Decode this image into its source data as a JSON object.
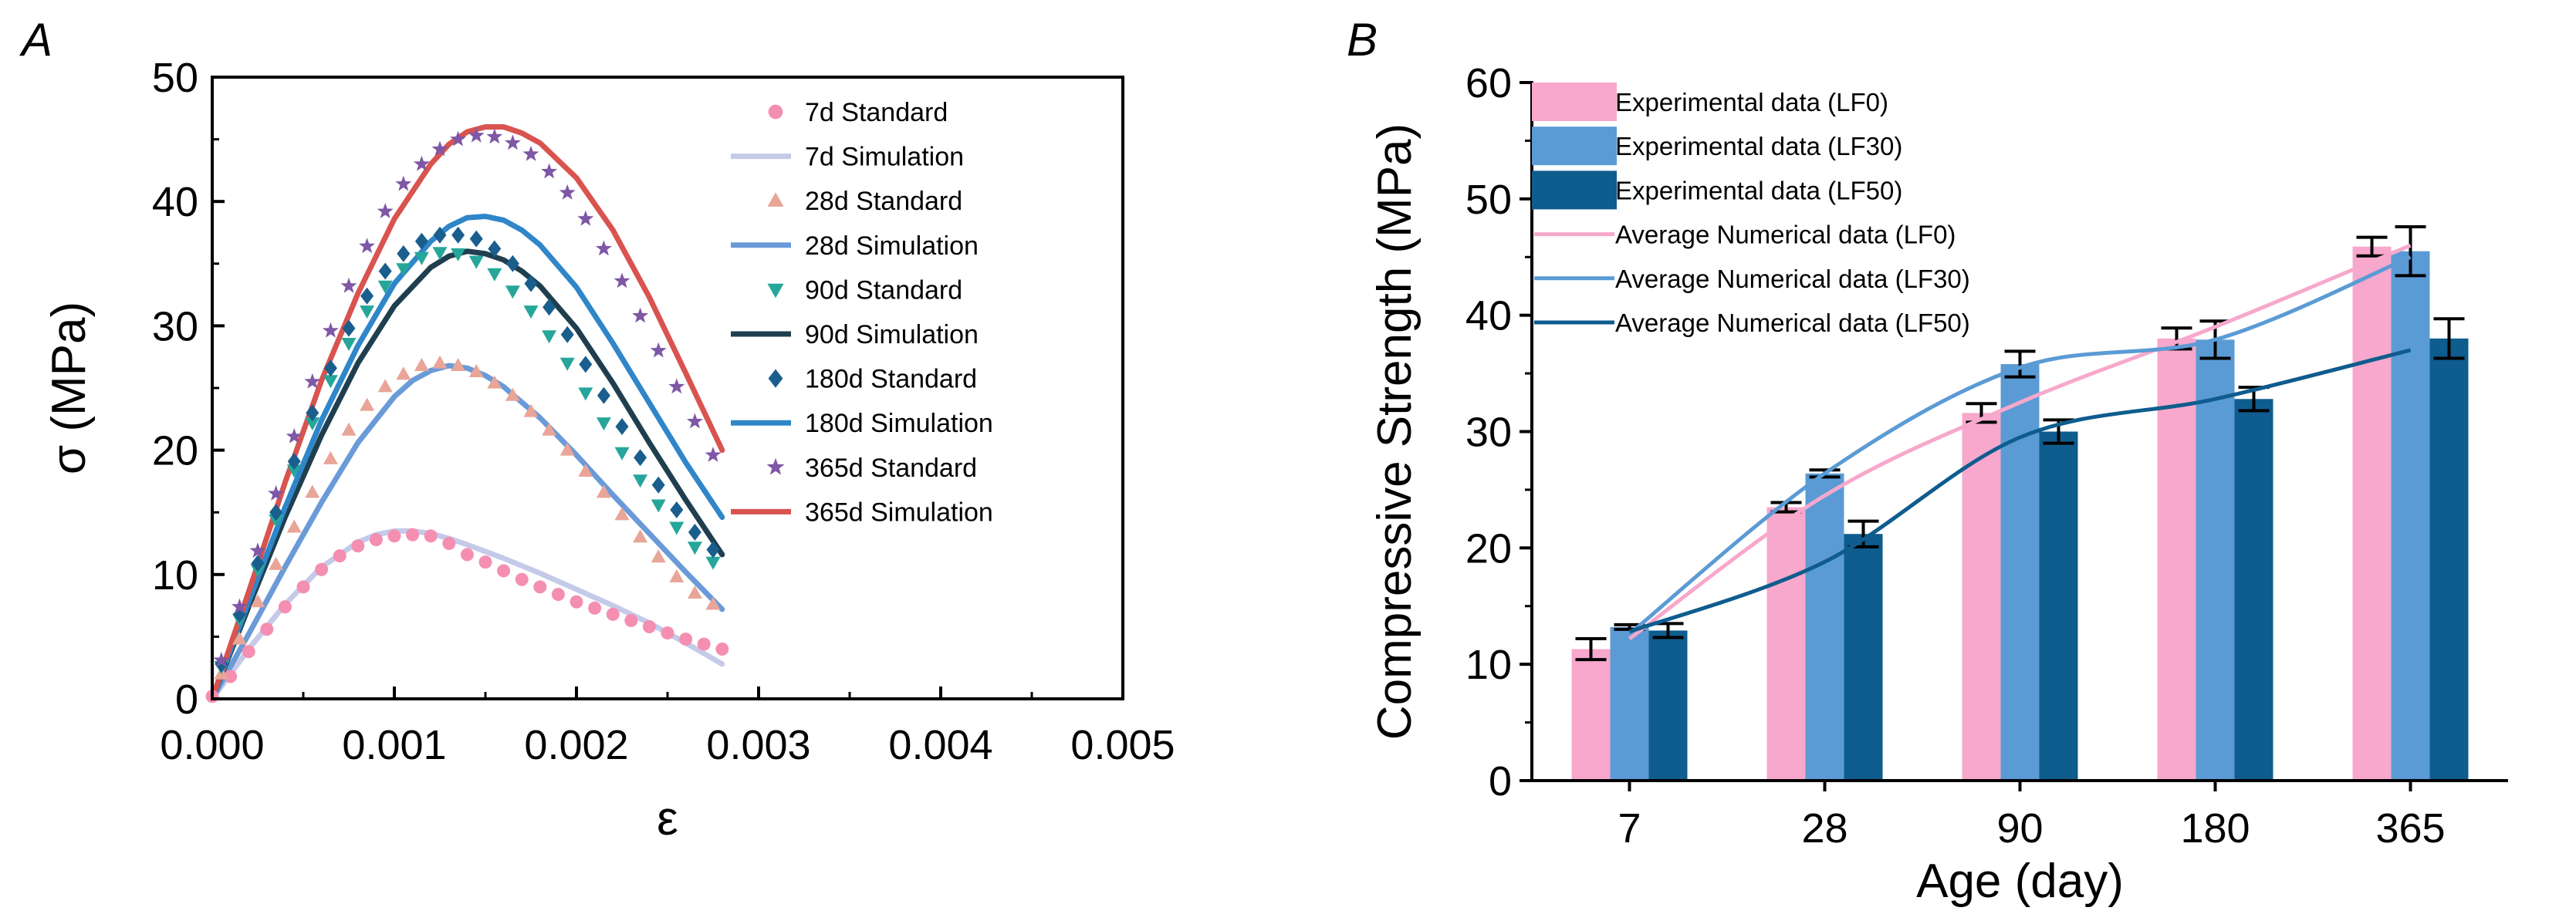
{
  "chart_data": [
    {
      "panel_label": "A",
      "type": "scatter",
      "xlabel": "ε",
      "ylabel": "σ (MPa)",
      "xlim": [
        0,
        0.005
      ],
      "ylim": [
        0,
        50
      ],
      "xticks": [
        "0.000",
        "0.001",
        "0.002",
        "0.003",
        "0.004",
        "0.005"
      ],
      "yticks": [
        "0",
        "10",
        "20",
        "30",
        "40",
        "50"
      ],
      "xtick_values": [
        0,
        0.001,
        0.002,
        0.003,
        0.004,
        0.005
      ],
      "ytick_values": [
        0,
        10,
        20,
        30,
        40,
        50
      ],
      "series": [
        {
          "name": "7d Standard",
          "kind": "marker",
          "marker": "circle",
          "color": "#F48FB1",
          "x": [
            0,
            0.0001,
            0.0002,
            0.0003,
            0.0004,
            0.0005,
            0.0006,
            0.0007,
            0.0008,
            0.0009,
            0.001,
            0.0011,
            0.0012,
            0.0013,
            0.0014,
            0.0015,
            0.0016,
            0.0017,
            0.0018,
            0.0019,
            0.002,
            0.0021,
            0.0022,
            0.0023,
            0.0024,
            0.0025,
            0.0026,
            0.0027,
            0.0028
          ],
          "y": [
            0.2,
            1.8,
            3.8,
            5.6,
            7.4,
            9.0,
            10.4,
            11.5,
            12.3,
            12.8,
            13.1,
            13.2,
            13.1,
            12.5,
            11.6,
            11.0,
            10.3,
            9.6,
            9.0,
            8.4,
            7.8,
            7.3,
            6.8,
            6.3,
            5.8,
            5.3,
            4.8,
            4.4,
            4.0
          ]
        },
        {
          "name": "7d Simulation",
          "kind": "line",
          "color": "#C5CAE9",
          "x": [
            0,
            0.0001,
            0.0002,
            0.0004,
            0.0006,
            0.0008,
            0.0009,
            0.001,
            0.0011,
            0.0012,
            0.0013,
            0.0014,
            0.0016,
            0.0018,
            0.002,
            0.0022,
            0.0024,
            0.0026,
            0.0028
          ],
          "y": [
            0,
            2.0,
            4.0,
            7.6,
            10.6,
            12.6,
            13.2,
            13.5,
            13.5,
            13.3,
            12.9,
            12.4,
            11.3,
            10.1,
            8.8,
            7.5,
            6.1,
            4.5,
            2.8
          ]
        },
        {
          "name": "28d Standard",
          "kind": "marker",
          "marker": "triangle",
          "color": "#E8A598",
          "x": [
            5e-05,
            0.00015,
            0.00025,
            0.00035,
            0.00045,
            0.00055,
            0.00065,
            0.00075,
            0.00085,
            0.00095,
            0.00105,
            0.00115,
            0.00125,
            0.00135,
            0.00145,
            0.00155,
            0.00165,
            0.00175,
            0.00185,
            0.00195,
            0.00205,
            0.00215,
            0.00225,
            0.00235,
            0.00245,
            0.00255,
            0.00265,
            0.00275
          ],
          "y": [
            2.0,
            4.8,
            7.8,
            10.8,
            13.8,
            16.6,
            19.3,
            21.6,
            23.6,
            25.1,
            26.1,
            26.8,
            27.0,
            26.8,
            26.3,
            25.4,
            24.4,
            23.1,
            21.6,
            20.0,
            18.3,
            16.6,
            14.8,
            13.0,
            11.4,
            9.8,
            8.5,
            7.6
          ]
        },
        {
          "name": "28d Simulation",
          "kind": "line",
          "color": "#6A9AD8",
          "x": [
            0,
            0.0002,
            0.0004,
            0.0006,
            0.0008,
            0.001,
            0.0011,
            0.0012,
            0.0013,
            0.0014,
            0.0015,
            0.0016,
            0.0018,
            0.002,
            0.0022,
            0.0024,
            0.0026,
            0.0028
          ],
          "y": [
            0,
            5.2,
            10.6,
            15.8,
            20.6,
            24.3,
            25.6,
            26.4,
            26.8,
            26.6,
            26.0,
            25.1,
            22.6,
            19.6,
            16.4,
            13.3,
            10.2,
            7.2
          ]
        },
        {
          "name": "90d Standard",
          "kind": "marker",
          "marker": "triangle-down",
          "color": "#26A69A",
          "x": [
            5e-05,
            0.00015,
            0.00025,
            0.00035,
            0.00045,
            0.00055,
            0.00065,
            0.00075,
            0.00085,
            0.00095,
            0.00105,
            0.00115,
            0.00125,
            0.00135,
            0.00145,
            0.00155,
            0.00165,
            0.00175,
            0.00185,
            0.00195,
            0.00205,
            0.00215,
            0.00225,
            0.00235,
            0.00245,
            0.00255,
            0.00265,
            0.00275
          ],
          "y": [
            2.6,
            6.4,
            10.4,
            14.4,
            18.4,
            22.2,
            25.6,
            28.6,
            31.2,
            33.2,
            34.6,
            35.5,
            35.9,
            35.8,
            35.2,
            34.2,
            32.8,
            31.2,
            29.2,
            27.0,
            24.6,
            22.2,
            19.8,
            17.6,
            15.6,
            13.8,
            12.2,
            11.0
          ]
        },
        {
          "name": "90d Simulation",
          "kind": "line",
          "color": "#1F3F4F",
          "x": [
            0,
            0.0002,
            0.0004,
            0.0006,
            0.0008,
            0.001,
            0.0012,
            0.0013,
            0.0014,
            0.0015,
            0.0016,
            0.0017,
            0.0018,
            0.002,
            0.0022,
            0.0024,
            0.0026,
            0.0028
          ],
          "y": [
            0,
            7.4,
            14.6,
            21.2,
            27.0,
            31.6,
            34.7,
            35.6,
            36.0,
            35.8,
            35.3,
            34.4,
            33.2,
            29.8,
            25.4,
            20.6,
            16.0,
            11.6
          ]
        },
        {
          "name": "180d Standard",
          "kind": "marker",
          "marker": "diamond",
          "color": "#1A5E8E",
          "x": [
            5e-05,
            0.00015,
            0.00025,
            0.00035,
            0.00045,
            0.00055,
            0.00065,
            0.00075,
            0.00085,
            0.00095,
            0.00105,
            0.00115,
            0.00125,
            0.00135,
            0.00145,
            0.00155,
            0.00165,
            0.00175,
            0.00185,
            0.00195,
            0.00205,
            0.00215,
            0.00225,
            0.00235,
            0.00245,
            0.00255,
            0.00265,
            0.00275
          ],
          "y": [
            2.8,
            6.8,
            10.9,
            15.0,
            19.1,
            23.0,
            26.6,
            29.8,
            32.4,
            34.4,
            35.8,
            36.8,
            37.3,
            37.3,
            37.0,
            36.2,
            35.0,
            33.4,
            31.5,
            29.3,
            26.9,
            24.4,
            21.9,
            19.4,
            17.2,
            15.2,
            13.4,
            12.0
          ]
        },
        {
          "name": "180d Simulation",
          "kind": "line",
          "color": "#2F86C8",
          "x": [
            0,
            0.0002,
            0.0004,
            0.0006,
            0.0008,
            0.001,
            0.0012,
            0.0013,
            0.0014,
            0.0015,
            0.0016,
            0.0017,
            0.0018,
            0.002,
            0.0022,
            0.0024,
            0.0026,
            0.0028
          ],
          "y": [
            0,
            7.8,
            15.4,
            22.4,
            28.4,
            33.4,
            36.8,
            38.0,
            38.7,
            38.8,
            38.5,
            37.7,
            36.5,
            33.1,
            28.6,
            23.8,
            19.0,
            14.6
          ]
        },
        {
          "name": "365d Standard",
          "kind": "marker",
          "marker": "star",
          "color": "#7E57A6",
          "x": [
            5e-05,
            0.00015,
            0.00025,
            0.00035,
            0.00045,
            0.00055,
            0.00065,
            0.00075,
            0.00085,
            0.00095,
            0.00105,
            0.00115,
            0.00125,
            0.00135,
            0.00145,
            0.00155,
            0.00165,
            0.00175,
            0.00185,
            0.00195,
            0.00205,
            0.00215,
            0.00225,
            0.00235,
            0.00245,
            0.00255,
            0.00265,
            0.00275
          ],
          "y": [
            3.1,
            7.4,
            11.9,
            16.5,
            21.1,
            25.5,
            29.6,
            33.2,
            36.4,
            39.2,
            41.4,
            43.0,
            44.2,
            45.0,
            45.3,
            45.2,
            44.7,
            43.8,
            42.4,
            40.7,
            38.6,
            36.2,
            33.6,
            30.8,
            28.0,
            25.1,
            22.3,
            19.6
          ]
        },
        {
          "name": "365d Simulation",
          "kind": "line",
          "color": "#D9534F",
          "x": [
            0,
            0.0002,
            0.0004,
            0.0006,
            0.0008,
            0.001,
            0.0012,
            0.0013,
            0.0014,
            0.0015,
            0.0016,
            0.0017,
            0.0018,
            0.002,
            0.0022,
            0.0024,
            0.0026,
            0.0028
          ],
          "y": [
            0,
            8.6,
            17.4,
            25.6,
            32.6,
            38.6,
            43.0,
            44.6,
            45.6,
            46.0,
            46.0,
            45.5,
            44.7,
            41.9,
            37.7,
            32.3,
            26.2,
            20.0
          ]
        }
      ]
    },
    {
      "panel_label": "B",
      "type": "bar",
      "xlabel": "Age (day)",
      "ylabel": "Compressive Strength (MPa)",
      "ylim": [
        0,
        60
      ],
      "yticks": [
        "0",
        "10",
        "20",
        "30",
        "40",
        "50",
        "60"
      ],
      "ytick_values": [
        0,
        10,
        20,
        30,
        40,
        50,
        60
      ],
      "categories": [
        "7",
        "28",
        "90",
        "180",
        "365"
      ],
      "series": [
        {
          "name": "Experimental data (LF0)",
          "kind": "bar",
          "color": "#F7A8CC",
          "values": [
            11.3,
            23.5,
            31.6,
            38.0,
            45.9
          ],
          "errors": [
            0.9,
            0.4,
            0.8,
            0.9,
            0.8
          ]
        },
        {
          "name": "Experimental data (LF30)",
          "kind": "bar",
          "color": "#5B9BD5",
          "values": [
            13.2,
            26.4,
            35.8,
            37.9,
            45.5
          ],
          "errors": [
            0.2,
            0.3,
            1.1,
            1.6,
            2.1
          ]
        },
        {
          "name": "Experimental data (LF50)",
          "kind": "bar",
          "color": "#0F5C8E",
          "values": [
            12.9,
            21.2,
            30.0,
            32.8,
            38.0
          ],
          "errors": [
            0.6,
            1.1,
            1.0,
            1.0,
            1.7
          ]
        },
        {
          "name": "Average Numerical data (LF0)",
          "kind": "line",
          "color": "#F7A8CC",
          "values": [
            12.2,
            24.5,
            32.5,
            39.0,
            46.0
          ]
        },
        {
          "name": "Average Numerical data (LF30)",
          "kind": "line",
          "color": "#5B9BD5",
          "values": [
            12.6,
            26.4,
            35.5,
            37.9,
            45.0
          ]
        },
        {
          "name": "Average Numerical data (LF50)",
          "kind": "line",
          "color": "#0F5C8E",
          "values": [
            12.8,
            18.8,
            29.5,
            32.8,
            37.0
          ]
        }
      ]
    }
  ]
}
